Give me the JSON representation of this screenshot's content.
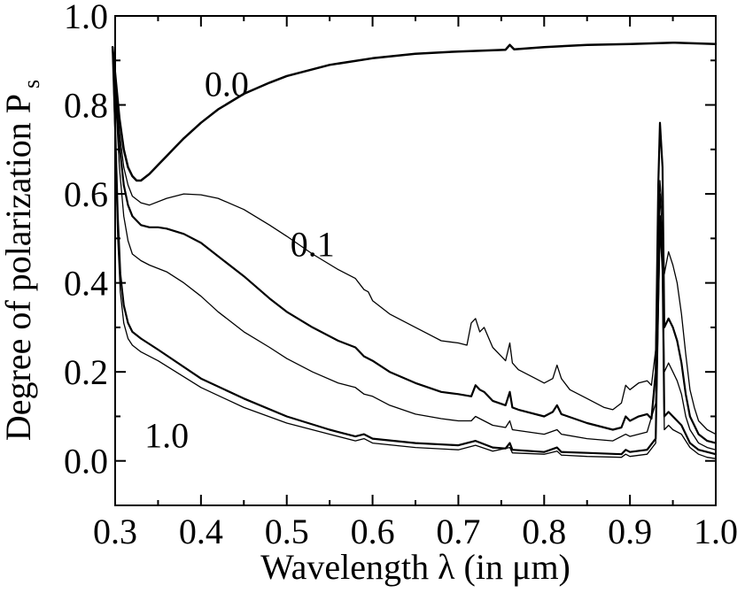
{
  "chart_data": {
    "type": "line",
    "title": "",
    "xlabel": "Wavelength λ (in μm)",
    "ylabel": "Degree of polarization P",
    "ylabel_subscript": "s",
    "xlim": [
      0.3,
      1.0
    ],
    "ylim": [
      -0.1,
      1.0
    ],
    "x_ticks": [
      0.3,
      0.4,
      0.5,
      0.6,
      0.7,
      0.8,
      0.9,
      1.0
    ],
    "x_tick_labels": [
      "0.3",
      "0.4",
      "0.5",
      "0.6",
      "0.7",
      "0.8",
      "0.9",
      "1.0"
    ],
    "y_ticks": [
      0.0,
      0.2,
      0.4,
      0.6,
      0.8,
      1.0
    ],
    "y_tick_labels": [
      "0.0",
      "0.2",
      "0.4",
      "0.6",
      "0.8",
      "1.0"
    ],
    "grid": false,
    "legend": "none",
    "annotations": [
      {
        "text": "0.0",
        "x": 0.43,
        "y": 0.82
      },
      {
        "text": "0.1",
        "x": 0.53,
        "y": 0.46
      },
      {
        "text": "1.0",
        "x": 0.36,
        "y": 0.03
      }
    ],
    "series": [
      {
        "line_width": 2.5,
        "points": [
          [
            0.297,
            0.93
          ],
          [
            0.3,
            0.87
          ],
          [
            0.305,
            0.77
          ],
          [
            0.31,
            0.7
          ],
          [
            0.315,
            0.66
          ],
          [
            0.32,
            0.64
          ],
          [
            0.325,
            0.63
          ],
          [
            0.33,
            0.63
          ],
          [
            0.34,
            0.645
          ],
          [
            0.35,
            0.665
          ],
          [
            0.36,
            0.685
          ],
          [
            0.37,
            0.705
          ],
          [
            0.38,
            0.725
          ],
          [
            0.4,
            0.76
          ],
          [
            0.42,
            0.79
          ],
          [
            0.45,
            0.825
          ],
          [
            0.48,
            0.85
          ],
          [
            0.5,
            0.865
          ],
          [
            0.55,
            0.89
          ],
          [
            0.6,
            0.905
          ],
          [
            0.65,
            0.915
          ],
          [
            0.7,
            0.92
          ],
          [
            0.755,
            0.924
          ],
          [
            0.76,
            0.935
          ],
          [
            0.765,
            0.925
          ],
          [
            0.8,
            0.93
          ],
          [
            0.85,
            0.935
          ],
          [
            0.9,
            0.937
          ],
          [
            0.95,
            0.94
          ],
          [
            1.0,
            0.937
          ]
        ]
      },
      {
        "line_width": 1.3,
        "points": [
          [
            0.297,
            0.93
          ],
          [
            0.3,
            0.86
          ],
          [
            0.305,
            0.74
          ],
          [
            0.31,
            0.66
          ],
          [
            0.315,
            0.62
          ],
          [
            0.32,
            0.595
          ],
          [
            0.33,
            0.58
          ],
          [
            0.34,
            0.575
          ],
          [
            0.36,
            0.59
          ],
          [
            0.38,
            0.6
          ],
          [
            0.4,
            0.598
          ],
          [
            0.42,
            0.59
          ],
          [
            0.45,
            0.565
          ],
          [
            0.48,
            0.53
          ],
          [
            0.5,
            0.505
          ],
          [
            0.53,
            0.465
          ],
          [
            0.56,
            0.43
          ],
          [
            0.58,
            0.41
          ],
          [
            0.59,
            0.385
          ],
          [
            0.595,
            0.38
          ],
          [
            0.6,
            0.36
          ],
          [
            0.62,
            0.33
          ],
          [
            0.65,
            0.3
          ],
          [
            0.68,
            0.27
          ],
          [
            0.7,
            0.265
          ],
          [
            0.71,
            0.26
          ],
          [
            0.715,
            0.31
          ],
          [
            0.72,
            0.32
          ],
          [
            0.725,
            0.29
          ],
          [
            0.73,
            0.3
          ],
          [
            0.74,
            0.255
          ],
          [
            0.75,
            0.235
          ],
          [
            0.755,
            0.225
          ],
          [
            0.76,
            0.265
          ],
          [
            0.763,
            0.22
          ],
          [
            0.77,
            0.205
          ],
          [
            0.79,
            0.185
          ],
          [
            0.8,
            0.175
          ],
          [
            0.81,
            0.185
          ],
          [
            0.815,
            0.215
          ],
          [
            0.82,
            0.185
          ],
          [
            0.83,
            0.16
          ],
          [
            0.85,
            0.14
          ],
          [
            0.87,
            0.12
          ],
          [
            0.88,
            0.115
          ],
          [
            0.89,
            0.13
          ],
          [
            0.895,
            0.17
          ],
          [
            0.9,
            0.16
          ],
          [
            0.91,
            0.175
          ],
          [
            0.92,
            0.18
          ],
          [
            0.925,
            0.17
          ],
          [
            0.93,
            0.25
          ],
          [
            0.933,
            0.54
          ],
          [
            0.935,
            0.63
          ],
          [
            0.938,
            0.55
          ],
          [
            0.94,
            0.42
          ],
          [
            0.945,
            0.47
          ],
          [
            0.95,
            0.44
          ],
          [
            0.955,
            0.4
          ],
          [
            0.96,
            0.33
          ],
          [
            0.965,
            0.24
          ],
          [
            0.97,
            0.16
          ],
          [
            0.975,
            0.12
          ],
          [
            0.98,
            0.09
          ],
          [
            0.99,
            0.07
          ],
          [
            1.0,
            0.06
          ]
        ]
      },
      {
        "line_width": 2.2,
        "points": [
          [
            0.297,
            0.93
          ],
          [
            0.3,
            0.85
          ],
          [
            0.305,
            0.71
          ],
          [
            0.31,
            0.62
          ],
          [
            0.315,
            0.575
          ],
          [
            0.32,
            0.55
          ],
          [
            0.33,
            0.53
          ],
          [
            0.34,
            0.525
          ],
          [
            0.35,
            0.525
          ],
          [
            0.36,
            0.522
          ],
          [
            0.38,
            0.51
          ],
          [
            0.4,
            0.49
          ],
          [
            0.42,
            0.46
          ],
          [
            0.45,
            0.415
          ],
          [
            0.48,
            0.365
          ],
          [
            0.5,
            0.335
          ],
          [
            0.53,
            0.3
          ],
          [
            0.56,
            0.27
          ],
          [
            0.58,
            0.255
          ],
          [
            0.59,
            0.235
          ],
          [
            0.6,
            0.225
          ],
          [
            0.62,
            0.2
          ],
          [
            0.65,
            0.175
          ],
          [
            0.68,
            0.155
          ],
          [
            0.7,
            0.15
          ],
          [
            0.715,
            0.145
          ],
          [
            0.72,
            0.17
          ],
          [
            0.725,
            0.16
          ],
          [
            0.73,
            0.155
          ],
          [
            0.74,
            0.135
          ],
          [
            0.755,
            0.125
          ],
          [
            0.76,
            0.155
          ],
          [
            0.763,
            0.12
          ],
          [
            0.77,
            0.115
          ],
          [
            0.8,
            0.1
          ],
          [
            0.81,
            0.11
          ],
          [
            0.815,
            0.125
          ],
          [
            0.82,
            0.105
          ],
          [
            0.85,
            0.085
          ],
          [
            0.88,
            0.07
          ],
          [
            0.89,
            0.075
          ],
          [
            0.895,
            0.1
          ],
          [
            0.9,
            0.09
          ],
          [
            0.91,
            0.1
          ],
          [
            0.92,
            0.105
          ],
          [
            0.925,
            0.095
          ],
          [
            0.93,
            0.2
          ],
          [
            0.933,
            0.62
          ],
          [
            0.935,
            0.76
          ],
          [
            0.938,
            0.66
          ],
          [
            0.94,
            0.3
          ],
          [
            0.945,
            0.32
          ],
          [
            0.95,
            0.3
          ],
          [
            0.955,
            0.27
          ],
          [
            0.96,
            0.22
          ],
          [
            0.965,
            0.15
          ],
          [
            0.97,
            0.1
          ],
          [
            0.98,
            0.06
          ],
          [
            0.99,
            0.045
          ],
          [
            1.0,
            0.04
          ]
        ]
      },
      {
        "line_width": 1.3,
        "points": [
          [
            0.297,
            0.93
          ],
          [
            0.3,
            0.83
          ],
          [
            0.305,
            0.66
          ],
          [
            0.31,
            0.55
          ],
          [
            0.315,
            0.495
          ],
          [
            0.32,
            0.465
          ],
          [
            0.33,
            0.45
          ],
          [
            0.34,
            0.44
          ],
          [
            0.36,
            0.425
          ],
          [
            0.38,
            0.4
          ],
          [
            0.4,
            0.37
          ],
          [
            0.42,
            0.335
          ],
          [
            0.45,
            0.29
          ],
          [
            0.48,
            0.255
          ],
          [
            0.5,
            0.23
          ],
          [
            0.53,
            0.2
          ],
          [
            0.56,
            0.175
          ],
          [
            0.58,
            0.165
          ],
          [
            0.59,
            0.15
          ],
          [
            0.6,
            0.145
          ],
          [
            0.62,
            0.125
          ],
          [
            0.65,
            0.105
          ],
          [
            0.68,
            0.095
          ],
          [
            0.7,
            0.09
          ],
          [
            0.715,
            0.09
          ],
          [
            0.72,
            0.1
          ],
          [
            0.725,
            0.095
          ],
          [
            0.74,
            0.08
          ],
          [
            0.755,
            0.075
          ],
          [
            0.76,
            0.09
          ],
          [
            0.763,
            0.07
          ],
          [
            0.8,
            0.06
          ],
          [
            0.815,
            0.07
          ],
          [
            0.82,
            0.06
          ],
          [
            0.85,
            0.05
          ],
          [
            0.88,
            0.045
          ],
          [
            0.895,
            0.06
          ],
          [
            0.9,
            0.055
          ],
          [
            0.92,
            0.065
          ],
          [
            0.93,
            0.13
          ],
          [
            0.933,
            0.45
          ],
          [
            0.935,
            0.6
          ],
          [
            0.938,
            0.5
          ],
          [
            0.94,
            0.2
          ],
          [
            0.945,
            0.22
          ],
          [
            0.95,
            0.2
          ],
          [
            0.955,
            0.18
          ],
          [
            0.96,
            0.15
          ],
          [
            0.965,
            0.1
          ],
          [
            0.97,
            0.07
          ],
          [
            0.98,
            0.04
          ],
          [
            0.99,
            0.03
          ],
          [
            1.0,
            0.025
          ]
        ]
      },
      {
        "line_width": 2.2,
        "points": [
          [
            0.297,
            0.93
          ],
          [
            0.3,
            0.75
          ],
          [
            0.303,
            0.55
          ],
          [
            0.306,
            0.42
          ],
          [
            0.31,
            0.35
          ],
          [
            0.315,
            0.31
          ],
          [
            0.32,
            0.29
          ],
          [
            0.33,
            0.275
          ],
          [
            0.35,
            0.25
          ],
          [
            0.4,
            0.185
          ],
          [
            0.45,
            0.14
          ],
          [
            0.5,
            0.1
          ],
          [
            0.55,
            0.07
          ],
          [
            0.58,
            0.055
          ],
          [
            0.59,
            0.06
          ],
          [
            0.6,
            0.05
          ],
          [
            0.65,
            0.04
          ],
          [
            0.7,
            0.035
          ],
          [
            0.72,
            0.045
          ],
          [
            0.74,
            0.03
          ],
          [
            0.755,
            0.028
          ],
          [
            0.76,
            0.04
          ],
          [
            0.763,
            0.025
          ],
          [
            0.8,
            0.02
          ],
          [
            0.815,
            0.03
          ],
          [
            0.82,
            0.02
          ],
          [
            0.85,
            0.018
          ],
          [
            0.89,
            0.015
          ],
          [
            0.895,
            0.025
          ],
          [
            0.9,
            0.02
          ],
          [
            0.92,
            0.025
          ],
          [
            0.93,
            0.05
          ],
          [
            0.933,
            0.37
          ],
          [
            0.935,
            0.55
          ],
          [
            0.938,
            0.45
          ],
          [
            0.94,
            0.1
          ],
          [
            0.945,
            0.11
          ],
          [
            0.95,
            0.1
          ],
          [
            0.96,
            0.08
          ],
          [
            0.97,
            0.04
          ],
          [
            0.98,
            0.025
          ],
          [
            0.99,
            0.02
          ],
          [
            1.0,
            0.015
          ]
        ]
      },
      {
        "line_width": 1.3,
        "points": [
          [
            0.297,
            0.93
          ],
          [
            0.3,
            0.72
          ],
          [
            0.303,
            0.5
          ],
          [
            0.306,
            0.38
          ],
          [
            0.31,
            0.31
          ],
          [
            0.315,
            0.275
          ],
          [
            0.32,
            0.26
          ],
          [
            0.33,
            0.245
          ],
          [
            0.35,
            0.225
          ],
          [
            0.4,
            0.165
          ],
          [
            0.45,
            0.12
          ],
          [
            0.5,
            0.085
          ],
          [
            0.55,
            0.06
          ],
          [
            0.58,
            0.045
          ],
          [
            0.59,
            0.05
          ],
          [
            0.6,
            0.04
          ],
          [
            0.65,
            0.03
          ],
          [
            0.7,
            0.025
          ],
          [
            0.72,
            0.035
          ],
          [
            0.74,
            0.022
          ],
          [
            0.76,
            0.03
          ],
          [
            0.763,
            0.018
          ],
          [
            0.8,
            0.015
          ],
          [
            0.815,
            0.022
          ],
          [
            0.82,
            0.013
          ],
          [
            0.85,
            0.01
          ],
          [
            0.89,
            0.008
          ],
          [
            0.895,
            0.015
          ],
          [
            0.9,
            0.01
          ],
          [
            0.92,
            0.015
          ],
          [
            0.93,
            0.04
          ],
          [
            0.933,
            0.33
          ],
          [
            0.935,
            0.52
          ],
          [
            0.938,
            0.42
          ],
          [
            0.94,
            0.07
          ],
          [
            0.945,
            0.08
          ],
          [
            0.95,
            0.07
          ],
          [
            0.96,
            0.06
          ],
          [
            0.97,
            0.03
          ],
          [
            0.98,
            0.015
          ],
          [
            0.99,
            0.008
          ],
          [
            1.0,
            0.005
          ]
        ]
      }
    ]
  }
}
